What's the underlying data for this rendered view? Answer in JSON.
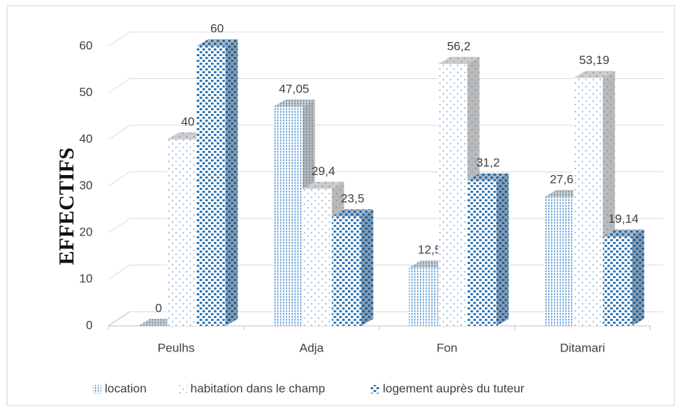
{
  "chart_data": {
    "type": "bar3d",
    "y_label": "EFFECTIFS",
    "categories": [
      "Peulhs",
      "Adja",
      "Fon",
      "Ditamari"
    ],
    "series": [
      {
        "name": "location",
        "color": "#5b9bd5",
        "values": [
          0,
          47.05,
          12.5,
          27.65
        ],
        "value_labels": [
          "0",
          "47,05",
          "12,5",
          "27,65"
        ]
      },
      {
        "name": "habitation dans le champ",
        "color": "#5b9bd5",
        "values": [
          40,
          29.4,
          56.2,
          53.19
        ],
        "value_labels": [
          "40",
          "29,4",
          "56,2",
          "53,19"
        ]
      },
      {
        "name": "logement auprès du tuteur",
        "color": "#2e75b6",
        "values": [
          60,
          23.5,
          31.2,
          19.14
        ],
        "value_labels": [
          "60",
          "23,5",
          "31,2",
          "19,14"
        ]
      }
    ],
    "ylim": [
      0,
      60
    ],
    "yticks": [
      0,
      10,
      20,
      30,
      40,
      50,
      60
    ],
    "grid": true,
    "legend": "bottom"
  }
}
